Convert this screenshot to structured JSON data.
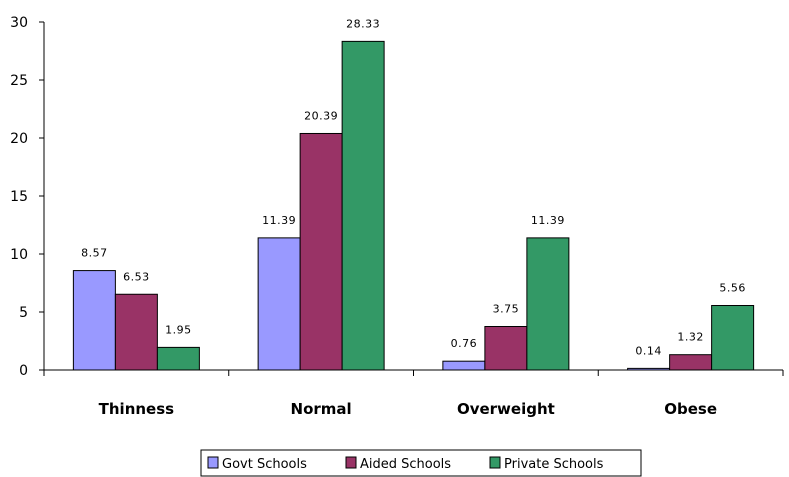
{
  "chart_data": {
    "type": "bar",
    "title": "",
    "xlabel": "",
    "ylabel": "",
    "categories": [
      "Thinness",
      "Normal",
      "Overweight",
      "Obese"
    ],
    "ylim": [
      0,
      30
    ],
    "yticks": [
      0,
      5,
      10,
      15,
      20,
      25,
      30
    ],
    "grid": false,
    "legend_position": "bottom",
    "series": [
      {
        "name": "Govt Schools",
        "values": [
          8.57,
          11.39,
          0.76,
          0.14
        ],
        "labels": [
          "8.57",
          "11.39",
          "0.76",
          "0.14"
        ],
        "color": "#9999ff"
      },
      {
        "name": "Aided Schools",
        "values": [
          6.53,
          20.39,
          3.75,
          1.32
        ],
        "labels": [
          "6.53",
          "20.39",
          "3.75",
          "1.32"
        ],
        "color": "#993366"
      },
      {
        "name": "Private Schools",
        "values": [
          1.95,
          28.33,
          11.39,
          5.56
        ],
        "labels": [
          "1.95",
          "28.33",
          "11.39",
          "5.56"
        ],
        "color": "#339966"
      }
    ]
  }
}
